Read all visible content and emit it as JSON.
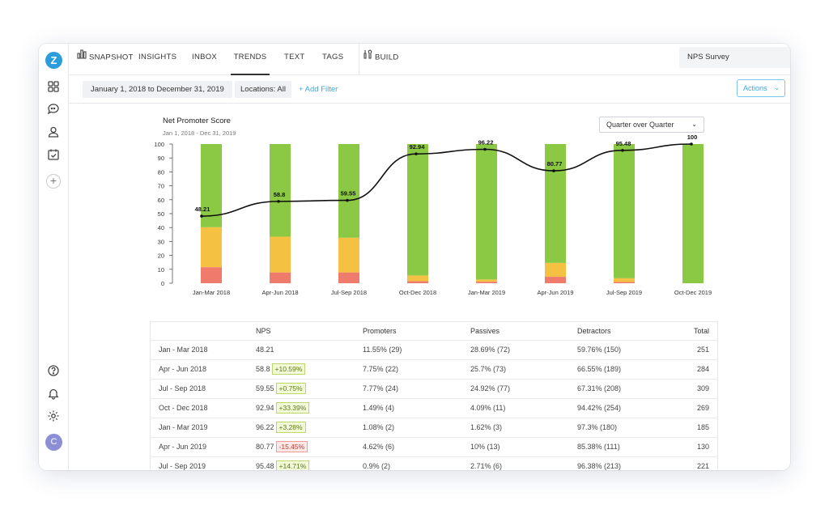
{
  "sidebar": {
    "logo": "Z",
    "icons": [
      "grid-icon",
      "chat-icon",
      "user-icon",
      "calendar-icon"
    ],
    "bottom_icons": [
      "help-icon",
      "bell-icon",
      "gear-icon"
    ],
    "avatar_initial": "C"
  },
  "nav": {
    "items": [
      {
        "label": "SNAPSHOT",
        "icon": "bar-chart-icon"
      },
      {
        "label": "INSIGHTS"
      },
      {
        "label": "INBOX"
      },
      {
        "label": "TRENDS",
        "active": true
      },
      {
        "label": "TEXT"
      },
      {
        "label": "TAGS"
      },
      {
        "label": "BUILD",
        "icon": "tools-icon"
      }
    ],
    "survey": "NPS Survey"
  },
  "filters": {
    "date_range": "January 1, 2018 to December 31, 2019",
    "locations": "Locations: All",
    "add_filter": "+ Add Filter",
    "actions": "Actions"
  },
  "chart": {
    "title": "Net Promoter Score",
    "subtitle": "Jan 1, 2018 - Dec 31, 2019",
    "period": "Quarter over Quarter"
  },
  "chart_data": {
    "type": "bar",
    "stacked": true,
    "categories": [
      "Jan-Mar 2018",
      "Apr-Jun 2018",
      "Jul-Sep 2018",
      "Oct-Dec 2018",
      "Jan-Mar 2019",
      "Apr-Jun 2019",
      "Jul-Sep 2019",
      "Oct-Dec 2019"
    ],
    "ylim": [
      0,
      100
    ],
    "yticks": [
      0,
      10,
      20,
      30,
      40,
      50,
      60,
      70,
      80,
      90,
      100
    ],
    "colors": {
      "detractors": "#ef7b6d",
      "passives": "#f4c143",
      "promoters": "#8bc944",
      "line": "#111111"
    },
    "series": [
      {
        "values": [
          11.55,
          7.75,
          7.77,
          1.49,
          1.08,
          4.62,
          0.9,
          0
        ]
      },
      {
        "values": [
          28.69,
          25.7,
          24.92,
          4.09,
          1.62,
          10,
          2.71,
          0
        ]
      },
      {
        "values": [
          59.76,
          66.55,
          67.31,
          94.42,
          97.3,
          85.38,
          96.38,
          100
        ]
      }
    ],
    "line": {
      "values": [
        48.21,
        58.8,
        59.55,
        92.94,
        96.22,
        80.77,
        95.48,
        100
      ]
    }
  },
  "table": {
    "headers": [
      "NPS",
      "Promoters",
      "Passives",
      "Detractors",
      "Total"
    ],
    "rows": [
      {
        "period": "Jan - Mar 2018",
        "nps": "48.21",
        "delta": "",
        "promoters": "11.55% (29)",
        "passives": "28.69% (72)",
        "detractors": "59.76% (150)",
        "total": "251"
      },
      {
        "period": "Apr - Jun 2018",
        "nps": "58.8",
        "delta": "+10.59%",
        "dir": "up",
        "promoters": "7.75% (22)",
        "passives": "25.7% (73)",
        "detractors": "66.55% (189)",
        "total": "284"
      },
      {
        "period": "Jul - Sep 2018",
        "nps": "59.55",
        "delta": "+0.75%",
        "dir": "up",
        "promoters": "7.77% (24)",
        "passives": "24.92% (77)",
        "detractors": "67.31% (208)",
        "total": "309"
      },
      {
        "period": "Oct - Dec 2018",
        "nps": "92.94",
        "delta": "+33.39%",
        "dir": "up",
        "promoters": "1.49% (4)",
        "passives": "4.09% (11)",
        "detractors": "94.42% (254)",
        "total": "269"
      },
      {
        "period": "Jan - Mar 2019",
        "nps": "96.22",
        "delta": "+3.28%",
        "dir": "up",
        "promoters": "1.08% (2)",
        "passives": "1.62% (3)",
        "detractors": "97.3% (180)",
        "total": "185"
      },
      {
        "period": "Apr - Jun 2019",
        "nps": "80.77",
        "delta": "-15.45%",
        "dir": "down",
        "promoters": "4.62% (6)",
        "passives": "10% (13)",
        "detractors": "85.38% (111)",
        "total": "130"
      },
      {
        "period": "Jul - Sep 2019",
        "nps": "95.48",
        "delta": "+14.71%",
        "dir": "up",
        "promoters": "0.9% (2)",
        "passives": "2.71% (6)",
        "detractors": "96.38% (213)",
        "total": "221"
      }
    ]
  }
}
